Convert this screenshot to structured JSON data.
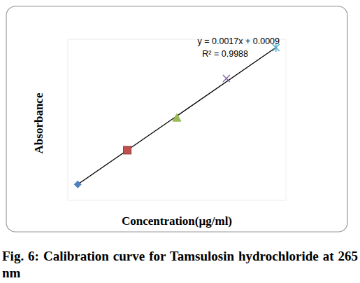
{
  "chart_data": {
    "type": "scatter",
    "caption": "Fig. 6: Calibration curve for Tamsulosin hydrochloride at 265 nm",
    "x_label": "Concentration(µg/ml)",
    "y_label": "Absorbance",
    "xlim": [
      8,
      52
    ],
    "ylim": [
      0.01,
      0.09
    ],
    "tick_labels": false,
    "grid": false,
    "series": [
      {
        "color": "#4f81bd",
        "marker": "diamond",
        "x": [
          10
        ],
        "values": [
          0.0179
        ]
      },
      {
        "color": "#c0504d",
        "marker": "square",
        "x": [
          20
        ],
        "values": [
          0.0349
        ]
      },
      {
        "color": "#9bbb59",
        "marker": "triangle",
        "x": [
          30
        ],
        "values": [
          0.051
        ]
      },
      {
        "color": "#8064a2",
        "marker": "x",
        "x": [
          40
        ],
        "values": [
          0.0705
        ]
      },
      {
        "color": "#4bacc6",
        "marker": "star",
        "x": [
          50
        ],
        "values": [
          0.0858
        ]
      }
    ],
    "trendline": {
      "slope": 0.0017,
      "intercept": 0.0009,
      "equation_label": "y = 0.0017x + 0.0009",
      "r_squared_label": "R² = 0.9988"
    }
  }
}
